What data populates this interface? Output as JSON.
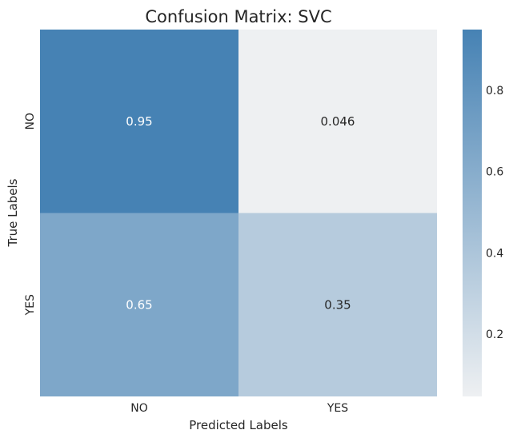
{
  "chart_data": {
    "type": "heatmap",
    "title": "Confusion Matrix: SVC",
    "xlabel": "Predicted Labels",
    "ylabel": "True Labels",
    "x_categories": [
      "NO",
      "YES"
    ],
    "y_categories": [
      "NO",
      "YES"
    ],
    "values": [
      [
        0.95,
        0.046
      ],
      [
        0.65,
        0.35
      ]
    ],
    "cell_labels": [
      [
        "0.95",
        "0.046"
      ],
      [
        "0.65",
        "0.35"
      ]
    ],
    "colormap": {
      "low": "#eef0f2",
      "high": "#4682b4"
    },
    "colorbar": {
      "range": [
        0.046,
        0.95
      ],
      "ticks": [
        0.2,
        0.4,
        0.6,
        0.8
      ],
      "tick_labels": [
        "0.2",
        "0.4",
        "0.6",
        "0.8"
      ]
    },
    "annotation_colors": {
      "dark_cell": "#ffffff",
      "light_cell": "#262626"
    }
  }
}
